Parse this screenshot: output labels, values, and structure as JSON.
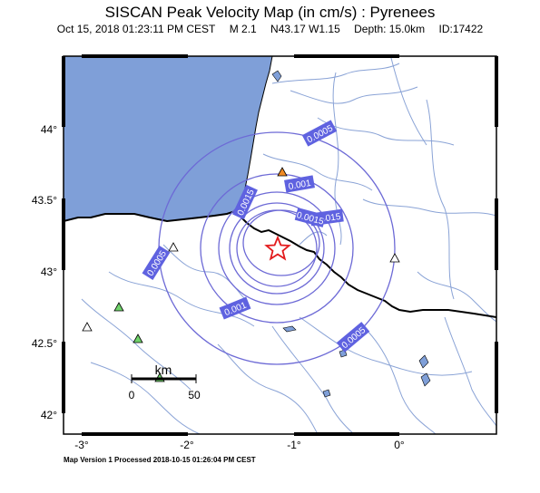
{
  "title": "SISCAN Peak Velocity Map (in cm/s) : Pyrenees",
  "subtitle": {
    "datetime": "Oct 15, 2018 01:23:11 PM CEST",
    "magnitude": "M 2.1",
    "location": "N43.17 W1.15",
    "depth": "Depth: 15.0km",
    "id": "ID:17422"
  },
  "footer": "Map Version 1 Processed 2018-10-15 01:26:04 PM CEST",
  "axes": {
    "lat_ticks": [
      "44°",
      "43.5°",
      "43°",
      "42.5°",
      "42°"
    ],
    "lon_ticks": [
      "-3°",
      "-2°",
      "-1°",
      "0°"
    ],
    "lat_range": [
      41.95,
      44.45
    ],
    "lon_range": [
      -3.2,
      0.85
    ]
  },
  "scale_bar": {
    "label": "km",
    "start": "0",
    "end": "50"
  },
  "contours": [
    {
      "label": "0.0005"
    },
    {
      "label": "0.0005"
    },
    {
      "label": "0.0005"
    },
    {
      "label": "0.001"
    },
    {
      "label": "0.001"
    },
    {
      "label": "0.0015"
    },
    {
      "label": "0.0015"
    },
    {
      "label": "0.0015"
    }
  ],
  "epicenter": {
    "lat": 43.17,
    "lon": -1.15
  },
  "stations": [
    {
      "type": "white",
      "lat": 43.17,
      "lon": -2.15
    },
    {
      "type": "white",
      "lat": 42.62,
      "lon": -2.93
    },
    {
      "type": "green",
      "lat": 42.74,
      "lon": -2.65
    },
    {
      "type": "green",
      "lat": 42.53,
      "lon": -2.47
    },
    {
      "type": "green",
      "lat": 42.26,
      "lon": -2.27
    },
    {
      "type": "orange",
      "lat": 43.7,
      "lon": -1.13
    },
    {
      "type": "white",
      "lat": 43.1,
      "lon": -0.03
    }
  ],
  "colors": {
    "sea": "#7f9fd8",
    "contour": "#6d6ad6",
    "label_bg": "#5f62e0",
    "border": "#000000",
    "rivers": "#8aa3d6",
    "epicenter": "#e31a1c"
  }
}
